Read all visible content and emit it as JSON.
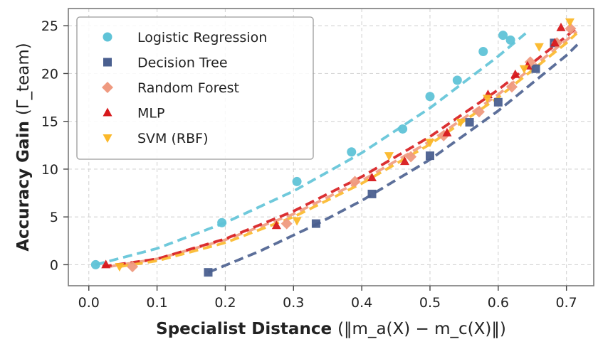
{
  "chart_data": {
    "type": "scatter",
    "title": "",
    "xlabel_bold": "Specialist Distance",
    "xlabel_math": "(‖m_a(X) − m_c(X)‖)",
    "ylabel_bold": "Accuracy Gain",
    "ylabel_math": "(Γ_team)",
    "xlim": [
      -0.03,
      0.74
    ],
    "ylim": [
      -2.2,
      26.8
    ],
    "xticks": [
      0.0,
      0.1,
      0.2,
      0.3,
      0.4,
      0.5,
      0.6,
      0.7
    ],
    "xtick_labels": [
      "0.0",
      "0.1",
      "0.2",
      "0.3",
      "0.4",
      "0.5",
      "0.6",
      "0.7"
    ],
    "yticks": [
      0,
      5,
      10,
      15,
      20,
      25
    ],
    "ytick_labels": [
      "0",
      "5",
      "10",
      "15",
      "20",
      "25"
    ],
    "grid": true,
    "legend_position": "top-left",
    "series": [
      {
        "name": "Logistic Regression",
        "color": "#5fc3d7",
        "marker": "circle",
        "points": [
          [
            0.01,
            0.0
          ],
          [
            0.195,
            4.4
          ],
          [
            0.305,
            8.7
          ],
          [
            0.385,
            11.8
          ],
          [
            0.46,
            14.2
          ],
          [
            0.5,
            17.6
          ],
          [
            0.54,
            19.3
          ],
          [
            0.578,
            22.3
          ],
          [
            0.607,
            24.0
          ],
          [
            0.618,
            23.5
          ]
        ],
        "fit": [
          [
            0.01,
            0.0
          ],
          [
            0.1,
            1.7
          ],
          [
            0.2,
            4.4
          ],
          [
            0.3,
            7.7
          ],
          [
            0.4,
            11.7
          ],
          [
            0.5,
            16.4
          ],
          [
            0.6,
            21.8
          ],
          [
            0.64,
            24.2
          ]
        ]
      },
      {
        "name": "Decision Tree",
        "color": "#4a5f8f",
        "marker": "square",
        "points": [
          [
            0.175,
            -0.8
          ],
          [
            0.333,
            4.3
          ],
          [
            0.415,
            7.4
          ],
          [
            0.5,
            11.4
          ],
          [
            0.558,
            14.9
          ],
          [
            0.6,
            17.0
          ],
          [
            0.655,
            20.5
          ],
          [
            0.682,
            23.2
          ]
        ],
        "fit": [
          [
            0.175,
            -0.8
          ],
          [
            0.25,
            1.4
          ],
          [
            0.333,
            4.2
          ],
          [
            0.4,
            6.7
          ],
          [
            0.5,
            11.0
          ],
          [
            0.6,
            16.1
          ],
          [
            0.7,
            21.9
          ],
          [
            0.72,
            23.3
          ]
        ]
      },
      {
        "name": "Random Forest",
        "color": "#ef9a80",
        "marker": "diamond",
        "points": [
          [
            0.064,
            -0.2
          ],
          [
            0.29,
            4.3
          ],
          [
            0.39,
            8.7
          ],
          [
            0.472,
            11.3
          ],
          [
            0.52,
            13.5
          ],
          [
            0.572,
            16.0
          ],
          [
            0.62,
            18.6
          ],
          [
            0.647,
            21.2
          ],
          [
            0.686,
            23.2
          ],
          [
            0.706,
            24.7
          ]
        ],
        "fit": [
          [
            0.03,
            -0.2
          ],
          [
            0.1,
            0.6
          ],
          [
            0.2,
            2.6
          ],
          [
            0.3,
            5.3
          ],
          [
            0.4,
            8.8
          ],
          [
            0.5,
            12.9
          ],
          [
            0.6,
            17.8
          ],
          [
            0.7,
            23.5
          ],
          [
            0.715,
            24.4
          ]
        ]
      },
      {
        "name": "MLP",
        "color": "#d7191c",
        "marker": "triangle-up",
        "points": [
          [
            0.025,
            0.0
          ],
          [
            0.275,
            4.1
          ],
          [
            0.415,
            9.1
          ],
          [
            0.463,
            10.8
          ],
          [
            0.525,
            13.8
          ],
          [
            0.585,
            17.8
          ],
          [
            0.625,
            19.9
          ],
          [
            0.643,
            20.8
          ],
          [
            0.683,
            23.2
          ],
          [
            0.692,
            24.8
          ]
        ],
        "fit": [
          [
            0.02,
            -0.2
          ],
          [
            0.1,
            0.6
          ],
          [
            0.2,
            2.7
          ],
          [
            0.3,
            5.6
          ],
          [
            0.4,
            9.2
          ],
          [
            0.5,
            13.4
          ],
          [
            0.6,
            18.3
          ],
          [
            0.7,
            23.9
          ],
          [
            0.715,
            24.8
          ]
        ]
      },
      {
        "name": "SVM (RBF)",
        "color": "#fbb829",
        "marker": "triangle-down",
        "points": [
          [
            0.045,
            -0.2
          ],
          [
            0.305,
            4.6
          ],
          [
            0.44,
            11.4
          ],
          [
            0.5,
            12.8
          ],
          [
            0.545,
            14.9
          ],
          [
            0.584,
            17.4
          ],
          [
            0.638,
            20.5
          ],
          [
            0.66,
            22.8
          ],
          [
            0.705,
            25.4
          ]
        ],
        "fit": [
          [
            0.045,
            -0.2
          ],
          [
            0.1,
            0.4
          ],
          [
            0.2,
            2.3
          ],
          [
            0.3,
            5.0
          ],
          [
            0.4,
            8.5
          ],
          [
            0.5,
            12.6
          ],
          [
            0.6,
            17.5
          ],
          [
            0.7,
            23.2
          ],
          [
            0.715,
            24.2
          ]
        ]
      }
    ]
  }
}
